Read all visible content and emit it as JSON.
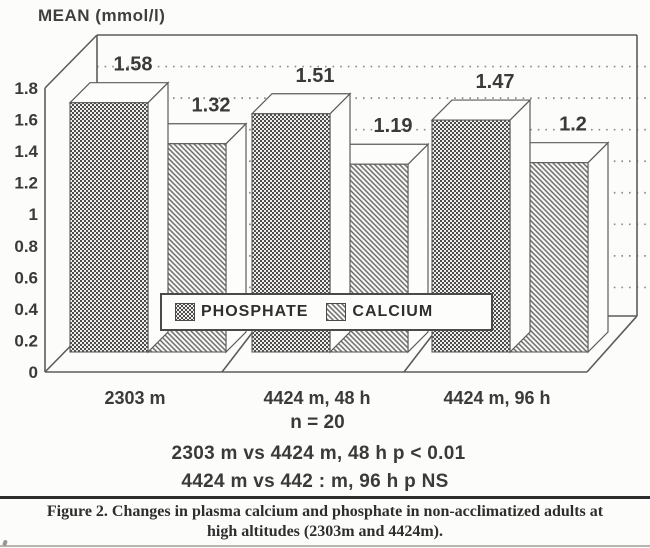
{
  "title": "MEAN (mmol/l)",
  "chart_data": {
    "type": "bar",
    "style": "3d-monochrome-scanned",
    "categories": [
      "2303 m",
      "4424 m, 48 h",
      "4424 m, 96 h"
    ],
    "series": [
      {
        "name": "PHOSPHATE",
        "pattern": "dark-cross-hatch",
        "values": [
          1.58,
          1.51,
          1.47
        ],
        "display": [
          "1.58",
          "1.51",
          "1.47"
        ]
      },
      {
        "name": "CALCIUM",
        "pattern": "diagonal-hatch",
        "values": [
          1.32,
          1.19,
          1.2
        ],
        "display": [
          "1.32",
          "1.19",
          "1.2"
        ]
      }
    ],
    "ylabel": "MEAN (mmol/l)",
    "ylim": [
      0,
      1.8
    ],
    "yticks": [
      "1.8",
      "1.6",
      "1.4",
      "1.2",
      "1",
      "0.8",
      "0.6",
      "0.4",
      "0.2",
      "0"
    ],
    "grid": "dotted-horizontal-backwall",
    "legend_position": "inside-bottom-center"
  },
  "legend": {
    "items": [
      {
        "label": "PHOSPHATE"
      },
      {
        "label": "CALCIUM"
      }
    ]
  },
  "annotations": {
    "n_line": "n = 20",
    "stat_line_1": "2303 m vs 4424 m, 48 h p < 0.01",
    "stat_line_2": "4424 m vs 442 : m, 96 h p NS"
  },
  "caption": {
    "line1": "Figure 2. Changes in plasma calcium and phosphate in non-acclimatized adults at",
    "line2": "high altitudes (2303m and 4424m)."
  },
  "colors": {
    "ink": "#3a3a3a",
    "line": "#5c5c5c",
    "paper": "#fcfcfa",
    "grid_dots": "#8a8a8a"
  }
}
